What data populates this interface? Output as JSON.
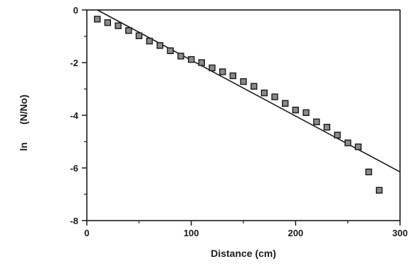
{
  "chart_data": {
    "type": "scatter",
    "xlabel": "Distance (cm)",
    "ylabel_ln": "ln",
    "ylabel_ratio": "(N/No)",
    "xlim": [
      0,
      300
    ],
    "ylim": [
      -8,
      0
    ],
    "x_ticks": [
      0,
      100,
      200,
      300
    ],
    "x_tick_labels": [
      "0",
      "100",
      "200",
      "300"
    ],
    "y_ticks": [
      0,
      -2,
      -4,
      -6,
      -8
    ],
    "y_tick_labels": [
      "0",
      "-2",
      "-4",
      "-6",
      "-8"
    ],
    "grid": false,
    "legend": "none",
    "colors": {
      "ink": "#1a1a1a",
      "marker_fill": "#8a8a8a"
    },
    "series": [
      {
        "kind": "points",
        "marker": "square",
        "x": [
          10,
          20,
          30,
          40,
          50,
          60,
          70,
          80,
          90,
          100,
          110,
          120,
          130,
          140,
          150,
          160,
          170,
          180,
          190,
          200,
          210,
          220,
          230,
          240,
          250,
          260,
          270,
          280
        ],
        "y": [
          -0.35,
          -0.48,
          -0.6,
          -0.78,
          -0.98,
          -1.18,
          -1.35,
          -1.55,
          -1.75,
          -1.88,
          -2.0,
          -2.2,
          -2.35,
          -2.5,
          -2.72,
          -2.9,
          -3.15,
          -3.3,
          -3.55,
          -3.8,
          -3.9,
          -4.25,
          -4.45,
          -4.75,
          -5.05,
          -5.2,
          -6.15,
          -6.85
        ]
      },
      {
        "kind": "fit-line",
        "x": [
          10,
          300
        ],
        "y": [
          0,
          -6.15
        ]
      }
    ]
  }
}
